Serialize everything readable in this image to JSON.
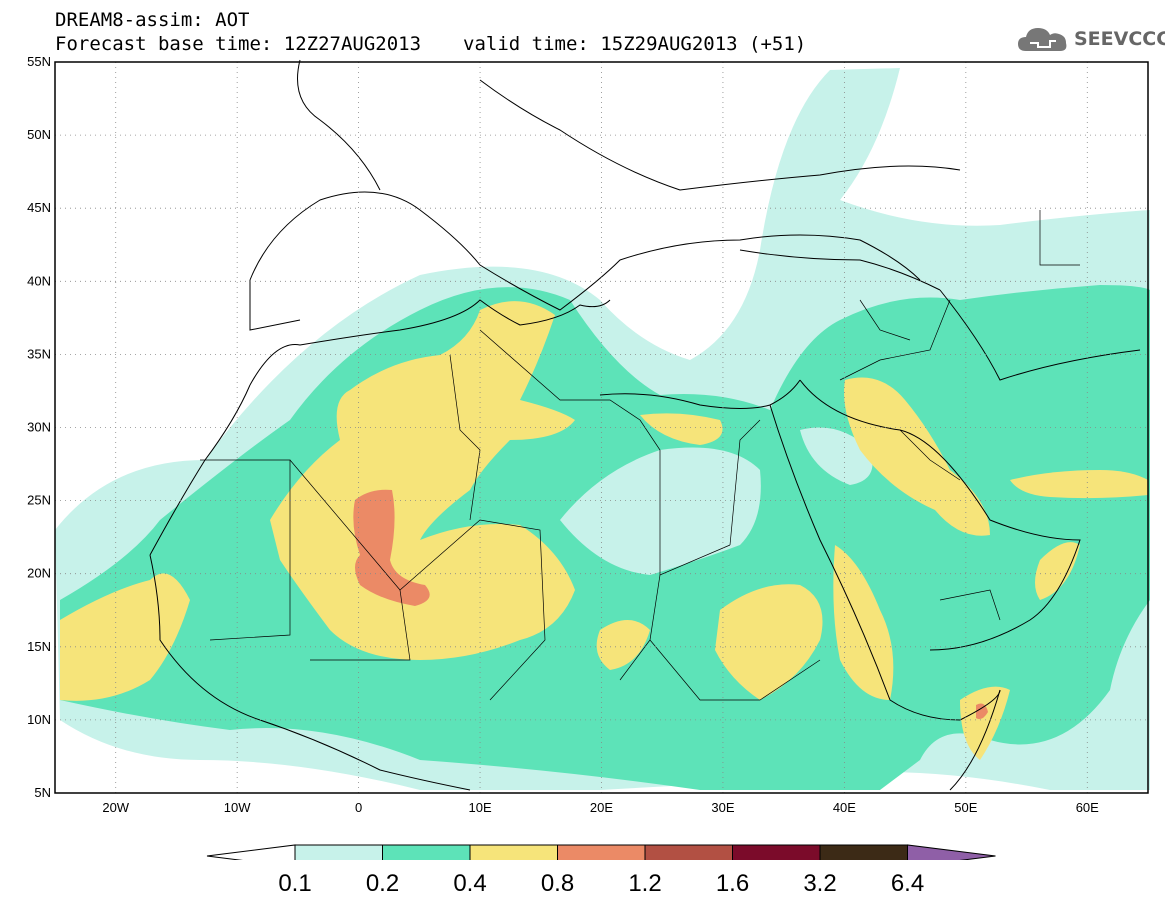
{
  "header": {
    "title_line1": "DREAM8-assim: AOT",
    "base_time": "Forecast base time: 12Z27AUG2013",
    "valid_time": "valid time: 15Z29AUG2013 (+51)"
  },
  "logo": {
    "text": "SEEVCCC",
    "icon": "cloud-icon"
  },
  "map_extent": {
    "lon": [
      -25,
      65
    ],
    "lat": [
      5,
      55
    ]
  },
  "axes": {
    "lat_ticks": [
      "55N",
      "50N",
      "45N",
      "40N",
      "35N",
      "30N",
      "25N",
      "20N",
      "15N",
      "10N",
      "5N"
    ],
    "lon_ticks": [
      "20W",
      "10W",
      "0",
      "10E",
      "20E",
      "30E",
      "40E",
      "50E",
      "60E"
    ]
  },
  "colorbar": {
    "labels": [
      "0.1",
      "0.2",
      "0.4",
      "0.8",
      "1.2",
      "1.6",
      "3.2",
      "6.4"
    ],
    "colors": [
      "#c7f2ea",
      "#5de3b8",
      "#f6e47a",
      "#eb8a66",
      "#b25043",
      "#7b0b2a",
      "#3c2a16",
      "#8f5fa7"
    ],
    "low_end_color": "#ffffff"
  }
}
